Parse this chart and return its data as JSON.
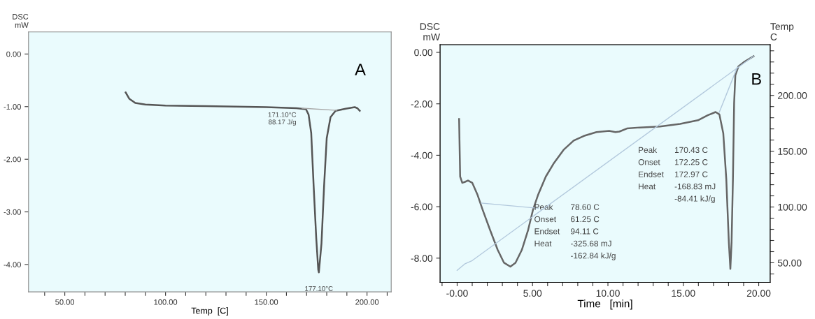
{
  "chart_data": [
    {
      "type": "line",
      "title": "A",
      "xlabel": "Temp  [C]",
      "ylabel": "DSC\nmW",
      "xlim": [
        32,
        212
      ],
      "ylim": [
        -4.52,
        0.42
      ],
      "xticks": [
        {
          "value": 40,
          "label": null
        },
        {
          "value": 50,
          "label": "50.00"
        },
        {
          "value": 60,
          "label": null
        },
        {
          "value": 70,
          "label": null
        },
        {
          "value": 80,
          "label": null
        },
        {
          "value": 90,
          "label": null
        },
        {
          "value": 100,
          "label": "100.00"
        },
        {
          "value": 110,
          "label": null
        },
        {
          "value": 120,
          "label": null
        },
        {
          "value": 130,
          "label": null
        },
        {
          "value": 140,
          "label": null
        },
        {
          "value": 150,
          "label": "150.00"
        },
        {
          "value": 160,
          "label": null
        },
        {
          "value": 170,
          "label": null
        },
        {
          "value": 180,
          "label": null
        },
        {
          "value": 190,
          "label": null
        },
        {
          "value": 200,
          "label": "200.00"
        },
        {
          "value": 210,
          "label": null
        }
      ],
      "yticks": [
        {
          "value": 0,
          "label": "0.00"
        },
        {
          "value": -1,
          "label": "-1.00"
        },
        {
          "value": -2,
          "label": "-2.00"
        },
        {
          "value": -3,
          "label": "-3.00"
        },
        {
          "value": -4,
          "label": "-4.00"
        }
      ],
      "grid": false,
      "legend": false,
      "series": [
        {
          "color": "#555555",
          "x": [
            80.2,
            82,
            85,
            90,
            100,
            120,
            150,
            165,
            169.7,
            171,
            172.3,
            173.5,
            174.8,
            175.8,
            176.1,
            177.4,
            178.7,
            180,
            181.9,
            184.4,
            189.4,
            193.9,
            195.2,
            196.4
          ],
          "values": [
            -0.73,
            -0.85,
            -0.93,
            -0.96,
            -0.98,
            -0.99,
            -1.01,
            -1.03,
            -1.05,
            -1.15,
            -1.5,
            -2.5,
            -3.5,
            -4.1,
            -4.15,
            -3.6,
            -2.5,
            -1.6,
            -1.2,
            -1.08,
            -1.04,
            -1.01,
            -1.03,
            -1.08
          ]
        },
        {
          "color": "#a8a8a8",
          "x": [
            167.8,
            185
          ],
          "values": [
            -1.03,
            -1.07
          ]
        }
      ],
      "annotations": [
        {
          "text": "171.10°C\n88.17 J/g",
          "x": 167.8,
          "y": -1.03
        },
        {
          "text": "177.10°C",
          "x": 176.1,
          "y": -4.15
        }
      ]
    },
    {
      "type": "line",
      "title": "B",
      "xlabel": "Time   [min]",
      "ylabel": "DSC\nmW",
      "y2label": "Temp\nC",
      "xlim": [
        -1.13,
        20.76
      ],
      "ylim": [
        -8.94,
        0.3
      ],
      "y2lim": [
        32.5,
        245.5
      ],
      "xticks": [
        {
          "value": -1,
          "label": null
        },
        {
          "value": 0,
          "label": "-0.00"
        },
        {
          "value": 1,
          "label": null
        },
        {
          "value": 2,
          "label": null
        },
        {
          "value": 3,
          "label": null
        },
        {
          "value": 4,
          "label": null
        },
        {
          "value": 5,
          "label": "5.00"
        },
        {
          "value": 6,
          "label": null
        },
        {
          "value": 7,
          "label": null
        },
        {
          "value": 8,
          "label": null
        },
        {
          "value": 9,
          "label": null
        },
        {
          "value": 10,
          "label": "10.00"
        },
        {
          "value": 11,
          "label": null
        },
        {
          "value": 12,
          "label": null
        },
        {
          "value": 13,
          "label": null
        },
        {
          "value": 14,
          "label": null
        },
        {
          "value": 15,
          "label": "15.00"
        },
        {
          "value": 16,
          "label": null
        },
        {
          "value": 17,
          "label": null
        },
        {
          "value": 18,
          "label": null
        },
        {
          "value": 19,
          "label": null
        },
        {
          "value": 20,
          "label": "20.00"
        }
      ],
      "yticks": [
        {
          "value": 0,
          "label": "0.00"
        },
        {
          "value": -2,
          "label": "-2.00"
        },
        {
          "value": -4,
          "label": "-4.00"
        },
        {
          "value": -6,
          "label": "-6.00"
        },
        {
          "value": -8,
          "label": "-8.00"
        }
      ],
      "y2ticks": [
        {
          "value": 40,
          "label": null
        },
        {
          "value": 50,
          "label": "50.00"
        },
        {
          "value": 60,
          "label": null
        },
        {
          "value": 70,
          "label": null
        },
        {
          "value": 80,
          "label": null
        },
        {
          "value": 90,
          "label": null
        },
        {
          "value": 100,
          "label": "100.00"
        },
        {
          "value": 110,
          "label": null
        },
        {
          "value": 120,
          "label": null
        },
        {
          "value": 130,
          "label": null
        },
        {
          "value": 140,
          "label": null
        },
        {
          "value": 150,
          "label": "150.00"
        },
        {
          "value": 160,
          "label": null
        },
        {
          "value": 170,
          "label": null
        },
        {
          "value": 180,
          "label": null
        },
        {
          "value": 190,
          "label": null
        },
        {
          "value": 200,
          "label": "200.00"
        },
        {
          "value": 210,
          "label": null
        },
        {
          "value": 220,
          "label": null
        },
        {
          "value": 230,
          "label": null
        },
        {
          "value": 240,
          "label": null
        }
      ],
      "grid": false,
      "legend": false,
      "series": [
        {
          "color": "#666666",
          "x": [
            0.13,
            0.2,
            0.34,
            0.5,
            0.72,
            1.0,
            1.34,
            1.68,
            2.18,
            2.69,
            3.11,
            3.53,
            3.87,
            4.29,
            4.71,
            5.04,
            5.38,
            5.88,
            6.39,
            7.06,
            7.73,
            8.4,
            9.24,
            10.08,
            10.5,
            10.76,
            11.26,
            12.1,
            13.45,
            14.79,
            15.97,
            16.64,
            17.14,
            17.39,
            17.65,
            17.85,
            18.02,
            18.12,
            18.2,
            18.29,
            18.37,
            18.45,
            18.66,
            18.99,
            19.66
          ],
          "values": [
            -2.59,
            -4.83,
            -5.07,
            -5.04,
            -4.98,
            -5.07,
            -5.52,
            -6.1,
            -6.9,
            -7.68,
            -8.18,
            -8.33,
            -8.18,
            -7.68,
            -6.9,
            -6.1,
            -5.52,
            -4.83,
            -4.33,
            -3.79,
            -3.43,
            -3.25,
            -3.1,
            -3.05,
            -3.1,
            -3.08,
            -2.96,
            -2.92,
            -2.88,
            -2.78,
            -2.64,
            -2.44,
            -2.32,
            -2.41,
            -3.15,
            -4.93,
            -7.39,
            -8.42,
            -7.39,
            -4.93,
            -1.97,
            -0.89,
            -0.54,
            -0.39,
            -0.15
          ]
        },
        {
          "color": "#b3c9dd",
          "axis": "y2",
          "x": [
            0,
            0.5,
            1,
            19.66
          ],
          "values": [
            43.2,
            48.9,
            52,
            235.2
          ]
        },
        {
          "color": "#b3c9dd",
          "x": [
            1.6,
            5.38
          ],
          "values": [
            -5.86,
            -6.06
          ]
        },
        {
          "color": "#b3c9dd",
          "x": [
            17.39,
            18.57
          ],
          "values": [
            -2.32,
            -0.59
          ]
        }
      ],
      "annotations": [
        "Peak\nOnset\nEndset\nHeat",
        "78.60 C\n61.25 C\n94.11 C\n-325.68 mJ\n-162.84 kJ/g",
        "Peak\nOnset\nEndset\nHeat",
        "170.43 C\n172.25 C\n172.97 C\n-168.83 mJ\n-84.41 kJ/g"
      ]
    }
  ]
}
